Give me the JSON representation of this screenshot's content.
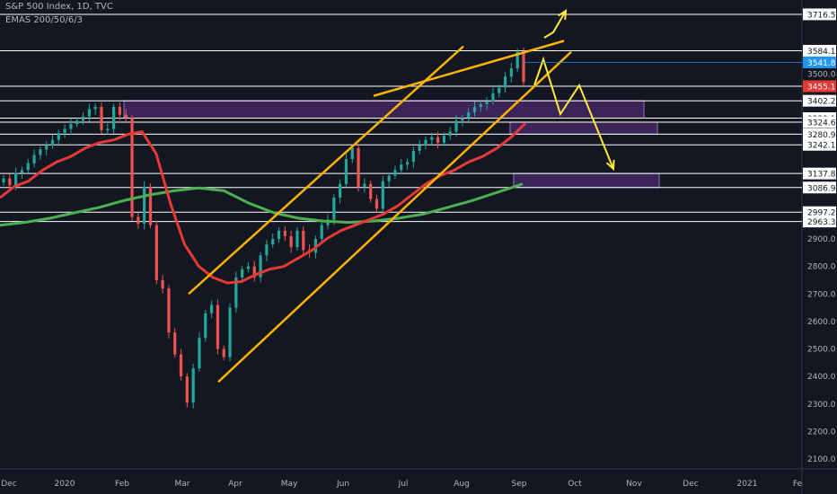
{
  "header": {
    "symbol": "S&P 500 Index, 1D, TVC",
    "indicator": "EMAS 200/50/6/3"
  },
  "colors": {
    "background": "#131722",
    "candle_up": "#26a69a",
    "candle_down": "#ef5350",
    "ema_red": "#e53935",
    "ema_green": "#4caf50",
    "channel": "#ffb300",
    "arrow": "#ffeb3b",
    "zone_fill": "#4a2a6b",
    "zone_border": "#9575cd",
    "hline": "#ffffff"
  },
  "chart_data": {
    "type": "candlestick",
    "x_tick_labels": [
      "Dec",
      "2020",
      "Feb",
      "Mar",
      "Apr",
      "May",
      "Jun",
      "Jul",
      "Aug",
      "Sep",
      "Oct",
      "Nov",
      "Dec",
      "2021",
      "Fe"
    ],
    "y_tick_labels": [
      "3716.5",
      "3584.1",
      "3541.8",
      "3500.0",
      "3455.1",
      "3402.2",
      "3339.1",
      "3324.6",
      "3280.9",
      "3242.1",
      "3137.8",
      "3086.9",
      "2997.2",
      "2963.3",
      "2900.0",
      "2800.0",
      "2700.0",
      "2600.0",
      "2500.0",
      "2400.0",
      "2300.0",
      "2200.0",
      "2100.0"
    ],
    "ylim": [
      2070,
      3760
    ],
    "horizontal_levels": [
      3716.5,
      3584.1,
      3455.1,
      3402.2,
      3339.1,
      3324.6,
      3280.9,
      3242.1,
      3137.8,
      3086.9,
      2997.2,
      2963.3
    ],
    "price_labels": [
      {
        "text": "3541.8",
        "role": "last",
        "color": "#2196f3"
      },
      {
        "text": "3455.1",
        "role": "ema",
        "color": "#e53935"
      }
    ],
    "demand_zones": [
      {
        "from": 3339.1,
        "to": 3402.2
      },
      {
        "from": 3280.9,
        "to": 3324.6
      },
      {
        "from": 3086.9,
        "to": 3137.8
      }
    ],
    "close_series": [
      3120,
      3095,
      3140,
      3150,
      3175,
      3205,
      3225,
      3240,
      3260,
      3285,
      3300,
      3318,
      3330,
      3345,
      3372,
      3380,
      3295,
      3300,
      3380,
      3352,
      3340,
      2980,
      2955,
      3090,
      2950,
      2750,
      2720,
      2560,
      2480,
      2400,
      2305,
      2430,
      2540,
      2630,
      2660,
      2500,
      2470,
      2650,
      2760,
      2790,
      2800,
      2760,
      2840,
      2880,
      2900,
      2930,
      2910,
      2870,
      2930,
      2860,
      2850,
      2900,
      2950,
      2970,
      3050,
      3100,
      3190,
      3230,
      3090,
      3100,
      3045,
      3010,
      3110,
      3130,
      3150,
      3170,
      3180,
      3220,
      3240,
      3260,
      3270,
      3250,
      3275,
      3290,
      3330,
      3340,
      3360,
      3380,
      3390,
      3400,
      3430,
      3450,
      3490,
      3520,
      3580,
      3470
    ],
    "ema_red": [
      3050,
      3090,
      3110,
      3150,
      3180,
      3200,
      3230,
      3250,
      3260,
      3280,
      3290,
      3210,
      3030,
      2880,
      2800,
      2760,
      2740,
      2745,
      2770,
      2790,
      2800,
      2830,
      2860,
      2900,
      2930,
      2950,
      2970,
      2990,
      3020,
      3060,
      3100,
      3130,
      3150,
      3180,
      3200,
      3230,
      3270,
      3320
    ],
    "ema_green": [
      2950,
      2960,
      2975,
      2995,
      3015,
      3040,
      3060,
      3075,
      3085,
      3075,
      3030,
      2995,
      2975,
      2965,
      2960,
      2965,
      2975,
      2990,
      3015,
      3040,
      3070,
      3100
    ],
    "channel_upper": [
      [
        2700,
        3600
      ],
      [
        3420,
        3620
      ]
    ],
    "channel_lower": [
      [
        2380,
        3580
      ]
    ],
    "grid": false,
    "title": "S&P 500 Index, 1D, TVC"
  }
}
